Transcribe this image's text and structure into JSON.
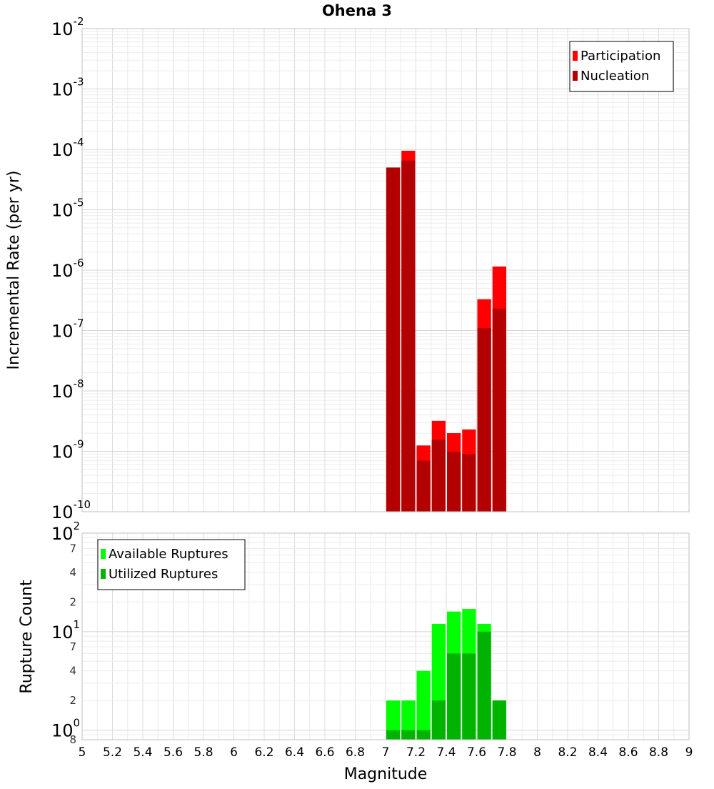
{
  "title": "Ohena 3",
  "xlabel": "Magnitude",
  "x_ticks": [
    "5",
    "5.2",
    "5.4",
    "5.6",
    "5.8",
    "6",
    "6.2",
    "6.4",
    "6.6",
    "6.8",
    "7",
    "7.2",
    "7.4",
    "7.6",
    "7.8",
    "8",
    "8.2",
    "8.4",
    "8.6",
    "8.8",
    "9"
  ],
  "chart_data": [
    {
      "type": "bar",
      "ylabel": "Incremental Rate (per yr)",
      "yscale": "log",
      "ylim": [
        1e-10,
        0.01
      ],
      "xlim": [
        5,
        9
      ],
      "bin_width": 0.1,
      "grid": true,
      "legend_position": "top-right",
      "y_tick_labels": [
        {
          "base": "10",
          "exp": "-2"
        },
        {
          "base": "10",
          "exp": "-3"
        },
        {
          "base": "10",
          "exp": "-4"
        },
        {
          "base": "10",
          "exp": "-5"
        },
        {
          "base": "10",
          "exp": "-6"
        },
        {
          "base": "10",
          "exp": "-7"
        },
        {
          "base": "10",
          "exp": "-8"
        },
        {
          "base": "10",
          "exp": "-9"
        },
        {
          "base": "10",
          "exp": "-10"
        }
      ],
      "x": [
        7.05,
        7.15,
        7.25,
        7.35,
        7.45,
        7.55,
        7.65,
        7.75
      ],
      "series": [
        {
          "name": "Participation",
          "color": "#ff0000",
          "values": [
            5e-05,
            9.5e-05,
            1.25e-09,
            3.2e-09,
            2e-09,
            2.3e-09,
            3.3e-07,
            1.15e-06
          ]
        },
        {
          "name": "Nucleation",
          "color": "#b30000",
          "values": [
            5e-05,
            6.5e-05,
            7e-10,
            1.55e-09,
            9.8e-10,
            9e-10,
            1.1e-07,
            2.3e-07
          ]
        }
      ]
    },
    {
      "type": "bar",
      "ylabel": "Rupture Count",
      "yscale": "log",
      "ylim": [
        0.8,
        100
      ],
      "xlim": [
        5,
        9
      ],
      "bin_width": 0.1,
      "grid": true,
      "legend_position": "top-left",
      "y_tick_labels": [
        {
          "value": 100,
          "base": "10",
          "exp": "2"
        },
        {
          "value": 70,
          "minor": "7"
        },
        {
          "value": 40,
          "minor": "4"
        },
        {
          "value": 20,
          "minor": "2"
        },
        {
          "value": 10,
          "base": "10",
          "exp": "1"
        },
        {
          "value": 7,
          "minor": "7"
        },
        {
          "value": 4,
          "minor": "4"
        },
        {
          "value": 2,
          "minor": "2"
        },
        {
          "value": 1,
          "base": "10",
          "exp": "0"
        },
        {
          "value": 0.8,
          "minor": "8"
        }
      ],
      "x": [
        7.05,
        7.15,
        7.25,
        7.35,
        7.45,
        7.55,
        7.65,
        7.75
      ],
      "series": [
        {
          "name": "Available Ruptures",
          "color": "#00ff00",
          "values": [
            2,
            2,
            4,
            12,
            16,
            17,
            12,
            2
          ]
        },
        {
          "name": "Utilized Ruptures",
          "color": "#00b300",
          "values": [
            1,
            1,
            1,
            2,
            6,
            6,
            10,
            2
          ]
        }
      ]
    }
  ]
}
